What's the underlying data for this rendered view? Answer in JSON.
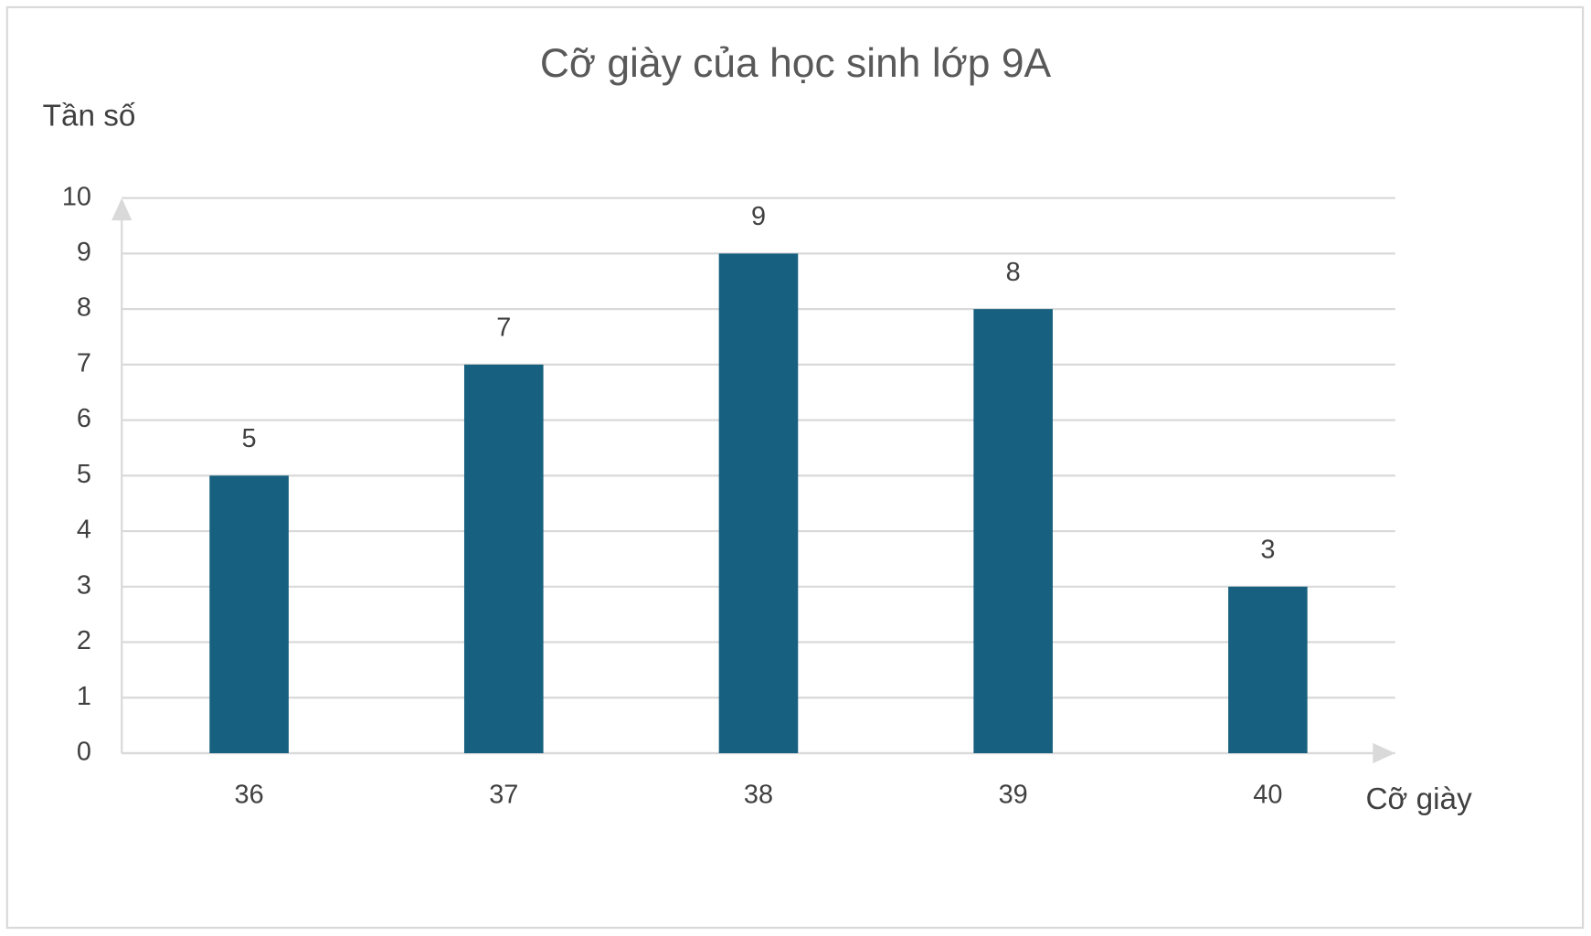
{
  "chart_data": {
    "type": "bar",
    "title": "Cỡ giày của học sinh lớp 9A",
    "x_label": "Cỡ giày",
    "y_label": "Tần số",
    "categories": [
      "36",
      "37",
      "38",
      "39",
      "40"
    ],
    "values": [
      5,
      7,
      9,
      8,
      3
    ],
    "color": "#17607f",
    "ylim": [
      0,
      10
    ],
    "yticks": [
      0,
      1,
      2,
      3,
      4,
      5,
      6,
      7,
      8,
      9,
      10
    ],
    "grid": true
  }
}
